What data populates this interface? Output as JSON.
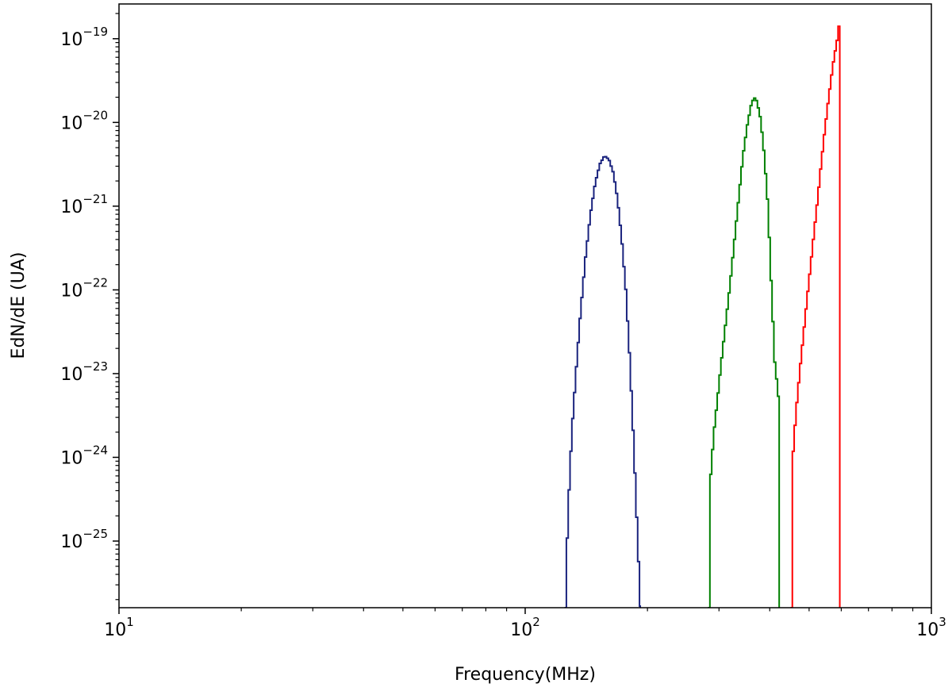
{
  "chart_data": {
    "type": "line",
    "title": "",
    "xlabel": "Frequency(MHz)",
    "ylabel": "EdN/dE (UA)",
    "xscale": "log",
    "yscale": "log",
    "xlim": [
      10,
      1000
    ],
    "ylim": [
      1.6e-26,
      2.6e-19
    ],
    "grid": false,
    "legend": "none",
    "x_ticks": [
      {
        "value": 10,
        "base": "10",
        "exp": "1"
      },
      {
        "value": 100,
        "base": "10",
        "exp": "2"
      },
      {
        "value": 1000,
        "base": "10",
        "exp": "3"
      }
    ],
    "y_ticks": [
      {
        "value": 1e-25,
        "base": "10",
        "exp": "−25"
      },
      {
        "value": 1e-24,
        "base": "10",
        "exp": "−24"
      },
      {
        "value": 1e-23,
        "base": "10",
        "exp": "−23"
      },
      {
        "value": 1e-22,
        "base": "10",
        "exp": "−22"
      },
      {
        "value": 1e-21,
        "base": "10",
        "exp": "−21"
      },
      {
        "value": 1e-20,
        "base": "10",
        "exp": "−20"
      },
      {
        "value": 1e-19,
        "base": "10",
        "exp": "−19"
      }
    ],
    "series": [
      {
        "color": "#1a237e",
        "x": [
          125,
          126,
          128,
          130,
          133,
          136,
          140,
          144,
          148,
          152,
          156,
          160,
          164,
          168,
          172,
          176,
          180,
          184,
          188,
          192
        ],
        "y": [
          1e-26,
          8e-26,
          6e-25,
          2.5e-24,
          1.2e-23,
          5e-23,
          2.4e-22,
          8e-22,
          1.9e-21,
          3.2e-21,
          4e-21,
          3.6e-21,
          2.5e-21,
          1.2e-21,
          4e-22,
          1e-22,
          1.5e-23,
          1.5e-24,
          1.2e-25,
          1e-26
        ]
      },
      {
        "color": "#008000",
        "x": [
          282,
          283,
          286,
          290,
          296,
          302,
          310,
          318,
          326,
          334,
          342,
          350,
          358,
          364,
          370,
          378,
          386,
          394,
          402,
          410,
          418,
          422
        ],
        "y": [
          1e-26,
          4e-25,
          8e-25,
          2e-24,
          5e-24,
          1.3e-23,
          4e-23,
          1.2e-22,
          4e-22,
          1.3e-21,
          4e-21,
          9e-21,
          1.6e-20,
          2e-20,
          1.8e-20,
          1.1e-20,
          4e-21,
          1e-21,
          1e-22,
          1.2e-23,
          6e-24,
          1e-26
        ]
      },
      {
        "color": "#ff0000",
        "x": [
          450,
          451,
          453,
          458,
          465,
          473,
          482,
          492,
          502,
          512,
          522,
          532,
          542,
          552,
          562,
          570,
          578,
          584,
          588,
          591,
          594,
          595
        ],
        "y": [
          1e-26,
          5e-25,
          9e-25,
          2e-24,
          5e-24,
          1.2e-23,
          3e-23,
          8e-23,
          2e-22,
          5e-22,
          1.2e-21,
          3e-21,
          7e-21,
          1.5e-20,
          3e-20,
          5e-20,
          7.5e-20,
          1e-19,
          1.3e-19,
          1.6e-19,
          1.7e-19,
          1e-26
        ]
      }
    ]
  }
}
